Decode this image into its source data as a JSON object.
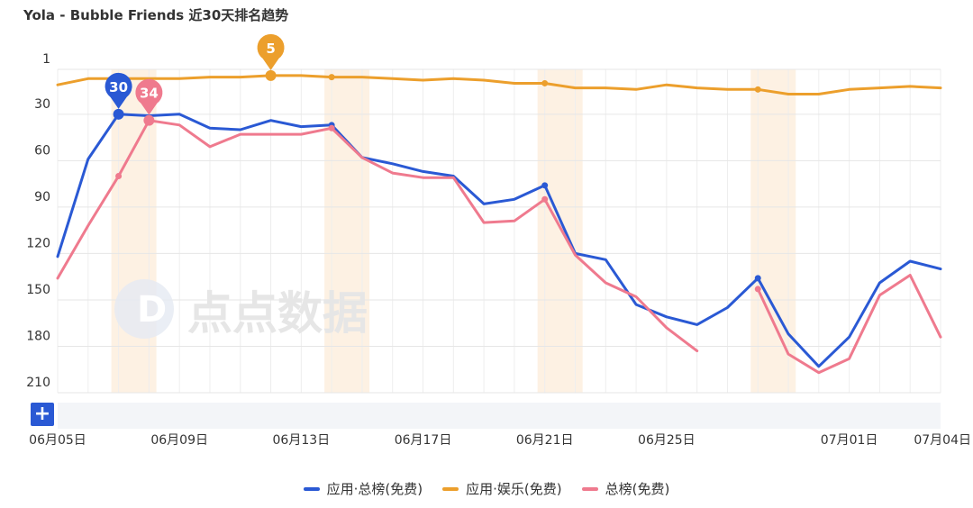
{
  "title": "Yola - Bubble Friends 近30天排名趋势",
  "watermark": "点点数据",
  "zoom_button_label": "+",
  "colors": {
    "accent_blue": "#2A59D4",
    "orange": "#EC9F2C",
    "pink": "#EF7A8E",
    "highlight_band": "#FDF1E3"
  },
  "chart_data": {
    "type": "line",
    "title": "Yola - Bubble Friends 近30天排名趋势",
    "xlabel": "",
    "ylabel": "",
    "y_inverted": true,
    "ylim": [
      1,
      210
    ],
    "y_ticks": [
      "1",
      "30",
      "60",
      "90",
      "120",
      "150",
      "180",
      "210"
    ],
    "x": [
      "06月05日",
      "06月06日",
      "06月07日",
      "06月08日",
      "06月09日",
      "06月10日",
      "06月11日",
      "06月12日",
      "06月13日",
      "06月14日",
      "06月15日",
      "06月16日",
      "06月17日",
      "06月18日",
      "06月19日",
      "06月20日",
      "06月21日",
      "06月22日",
      "06月23日",
      "06月24日",
      "06月25日",
      "06月26日",
      "06月27日",
      "06月28日",
      "06月29日",
      "06月30日",
      "07月01日",
      "07月02日",
      "07月03日",
      "07月04日"
    ],
    "x_tick_labels": [
      "06月05日",
      "06月09日",
      "06月13日",
      "06月17日",
      "06月21日",
      "06月25日",
      "07月01日",
      "07月04日"
    ],
    "grid": true,
    "legend_position": "bottom-center",
    "highlighted_dates": [
      "06月07日",
      "06月14日",
      "06月21日",
      "06月28日"
    ],
    "series": [
      {
        "name": "应用·总榜(免费)",
        "color": "#2A59D4",
        "values": [
          122,
          59,
          30,
          31,
          30,
          39,
          40,
          34,
          38,
          37,
          58,
          62,
          67,
          70,
          88,
          85,
          76,
          120,
          124,
          153,
          161,
          166,
          155,
          136,
          172,
          193,
          174,
          139,
          125,
          130
        ]
      },
      {
        "name": "应用·娱乐(免费)",
        "color": "#EC9F2C",
        "values": [
          11,
          7,
          7,
          7,
          7,
          6,
          6,
          5,
          5,
          6,
          6,
          7,
          8,
          7,
          8,
          10,
          10,
          13,
          13,
          14,
          11,
          13,
          14,
          14,
          17,
          17,
          14,
          13,
          12,
          13
        ]
      },
      {
        "name": "总榜(免费)",
        "color": "#EF7A8E",
        "values": [
          136,
          102,
          70,
          34,
          37,
          51,
          43,
          43,
          43,
          39,
          58,
          68,
          71,
          71,
          100,
          99,
          85,
          121,
          139,
          148,
          168,
          183,
          null,
          143,
          185,
          197,
          188,
          147,
          134,
          174
        ]
      }
    ],
    "annotations": [
      {
        "series": "应用·总榜(免费)",
        "x": "06月07日",
        "label": "30"
      },
      {
        "series": "总榜(免费)",
        "x": "06月08日",
        "label": "34"
      },
      {
        "series": "应用·娱乐(免费)",
        "x": "06月12日",
        "label": "5"
      }
    ]
  }
}
